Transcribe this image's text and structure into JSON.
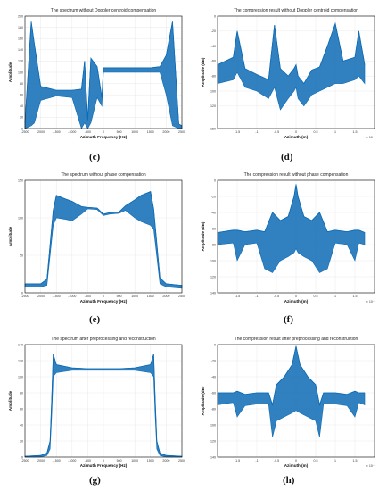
{
  "colors": {
    "series": "#0d6bb5",
    "grid": "#e3e3e3",
    "frame": "#000000"
  },
  "chart_data": [
    {
      "type": "line",
      "title": "The spectrum without Doppler centroid compensation",
      "xlabel": "Azimuth Frequency (Hz)",
      "ylabel": "Amplitude",
      "xlim": [
        -2500,
        2500
      ],
      "ylim": [
        0,
        200
      ],
      "xticks": [
        -2500,
        -2000,
        -1500,
        -1000,
        -500,
        0,
        500,
        1000,
        1500,
        2000,
        2500
      ],
      "yticks": [
        0,
        20,
        40,
        60,
        80,
        100,
        120,
        140,
        160,
        180,
        200
      ],
      "caption": "(c)",
      "series": [
        {
          "x": [
            -2500,
            -2300,
            -2200,
            -2000,
            -1500,
            -1000,
            -700,
            -600,
            -500,
            -400,
            -200,
            -50,
            0,
            50,
            200,
            500,
            1000,
            1500,
            1800,
            2000,
            2200,
            2400,
            2500
          ],
          "y": [
            10,
            190,
            150,
            75,
            68,
            68,
            70,
            120,
            15,
            125,
            110,
            55,
            108,
            108,
            108,
            108,
            108,
            108,
            110,
            130,
            190,
            8,
            5
          ],
          "env_lo": [
            0,
            5,
            10,
            50,
            58,
            55,
            0,
            10,
            0,
            10,
            55,
            40,
            100,
            100,
            100,
            100,
            100,
            100,
            100,
            60,
            5,
            0,
            0
          ]
        }
      ]
    },
    {
      "type": "line",
      "title": "The compression result without Doppler centroid compensation",
      "xlabel": "Azimuth (m)",
      "ylabel": "Amplitude (dB)",
      "xlim": [
        -2,
        2
      ],
      "ylim": [
        -150,
        0
      ],
      "xticks": [
        -1.5,
        -1,
        -0.5,
        0,
        0.5,
        1,
        1.5
      ],
      "yticks": [
        -150,
        -120,
        -100,
        -80,
        -60,
        -40,
        -20,
        0
      ],
      "exponent": "× 10⁻¹",
      "caption": "(d)",
      "series": [
        {
          "x": [
            -2,
            -1.6,
            -1.5,
            -1.3,
            -1,
            -0.7,
            -0.55,
            -0.4,
            -0.2,
            -0.05,
            0,
            0.05,
            0.2,
            0.4,
            0.6,
            0.8,
            1,
            1.2,
            1.5,
            1.6,
            1.75
          ],
          "y": [
            -65,
            -55,
            -20,
            -70,
            -78,
            -85,
            -12,
            -70,
            -80,
            -70,
            -65,
            -80,
            -90,
            -72,
            -68,
            -40,
            -10,
            -60,
            -55,
            -20,
            -65
          ],
          "env_lo": [
            -90,
            -85,
            -75,
            -95,
            -100,
            -110,
            -95,
            -125,
            -110,
            -100,
            -95,
            -110,
            -120,
            -105,
            -100,
            -95,
            -90,
            -90,
            -85,
            -80,
            -90
          ]
        }
      ]
    },
    {
      "type": "line",
      "title": "The spectrum without phase compensation",
      "xlabel": "Azimuth Frequency (Hz)",
      "ylabel": "Amplitude",
      "xlim": [
        -2500,
        2500
      ],
      "ylim": [
        0,
        150
      ],
      "xticks": [
        -2500,
        -2000,
        -1500,
        -1000,
        -500,
        0,
        500,
        1000,
        1500,
        2000,
        2500
      ],
      "yticks": [
        0,
        50,
        100,
        150
      ],
      "caption": "(e)",
      "series": [
        {
          "x": [
            -2500,
            -2000,
            -1800,
            -1600,
            -1500,
            -1200,
            -1000,
            -700,
            -500,
            -200,
            0,
            200,
            500,
            700,
            1000,
            1200,
            1500,
            1600,
            1800,
            2000,
            2500
          ],
          "y": [
            12,
            12,
            18,
            110,
            130,
            125,
            122,
            115,
            114,
            113,
            105,
            107,
            108,
            116,
            124,
            130,
            135,
            112,
            20,
            12,
            10
          ],
          "env_lo": [
            8,
            8,
            10,
            90,
            100,
            98,
            96,
            105,
            112,
            111,
            103,
            105,
            106,
            110,
            100,
            95,
            90,
            85,
            12,
            8,
            6
          ]
        }
      ]
    },
    {
      "type": "line",
      "title": "The compression result without phase compensation",
      "xlabel": "Azimuth (m)",
      "ylabel": "Amplitude (dB)",
      "xlim": [
        -2,
        2
      ],
      "ylim": [
        -140,
        0
      ],
      "xticks": [
        -1.5,
        -1,
        -0.5,
        0,
        0.5,
        1,
        1.5
      ],
      "yticks": [
        -140,
        -120,
        -100,
        -80,
        -60,
        -40,
        -20,
        0
      ],
      "exponent": "× 10⁻¹",
      "caption": "(f)",
      "series": [
        {
          "x": [
            -2,
            -1.6,
            -1.5,
            -1.3,
            -1,
            -0.8,
            -0.6,
            -0.4,
            -0.2,
            -0.05,
            0,
            0.05,
            0.2,
            0.4,
            0.6,
            0.8,
            1,
            1.3,
            1.5,
            1.6,
            1.75
          ],
          "y": [
            -65,
            -62,
            -62,
            -64,
            -62,
            -64,
            -40,
            -50,
            -45,
            -20,
            -5,
            -20,
            -45,
            -50,
            -40,
            -64,
            -62,
            -64,
            -62,
            -62,
            -65
          ],
          "env_lo": [
            -80,
            -78,
            -100,
            -80,
            -78,
            -110,
            -115,
            -100,
            -95,
            -90,
            -85,
            -90,
            -95,
            -100,
            -115,
            -110,
            -78,
            -80,
            -100,
            -78,
            -80
          ]
        }
      ]
    },
    {
      "type": "line",
      "title": "The spectrum after preprocessing and reconstruction",
      "xlabel": "Azimuth Frequency (Hz)",
      "ylabel": "Amplitude",
      "xlim": [
        -2500,
        2500
      ],
      "ylim": [
        0,
        140
      ],
      "xticks": [
        -2500,
        -2000,
        -1500,
        -1000,
        -500,
        0,
        500,
        1000,
        1500,
        2000,
        2500
      ],
      "yticks": [
        0,
        20,
        40,
        60,
        80,
        100,
        120,
        140
      ],
      "caption": "(g)",
      "series": [
        {
          "x": [
            -2500,
            -2000,
            -1800,
            -1700,
            -1650,
            -1600,
            -1500,
            -1000,
            -500,
            0,
            500,
            1000,
            1500,
            1600,
            1650,
            1700,
            1800,
            2000,
            2500
          ],
          "y": [
            1,
            2,
            5,
            20,
            70,
            128,
            115,
            111,
            110,
            110,
            110,
            111,
            115,
            128,
            70,
            20,
            5,
            2,
            1
          ],
          "env_lo": [
            0,
            0,
            2,
            10,
            50,
            100,
            105,
            108,
            108,
            108,
            108,
            108,
            105,
            100,
            50,
            10,
            2,
            0,
            0
          ]
        }
      ]
    },
    {
      "type": "line",
      "title": "The compression result after preprocessing and reconstruction",
      "xlabel": "Azimuth (m)",
      "ylabel": "Amplitude (dB)",
      "xlim": [
        -2,
        2
      ],
      "ylim": [
        -140,
        0
      ],
      "xticks": [
        -1.5,
        -1,
        -0.5,
        0,
        0.5,
        1,
        1.5
      ],
      "yticks": [
        -140,
        -120,
        -100,
        -80,
        -60,
        -40,
        -20,
        0
      ],
      "exponent": "× 10⁻¹",
      "caption": "(h)",
      "series": [
        {
          "x": [
            -2,
            -1.6,
            -1.5,
            -1.3,
            -1,
            -0.7,
            -0.6,
            -0.5,
            -0.3,
            -0.1,
            0,
            0.1,
            0.3,
            0.5,
            0.6,
            0.7,
            1,
            1.3,
            1.5,
            1.6,
            1.75
          ],
          "y": [
            -60,
            -60,
            -58,
            -62,
            -60,
            -60,
            -75,
            -50,
            -40,
            -25,
            -2,
            -25,
            -40,
            -50,
            -75,
            -60,
            -60,
            -62,
            -58,
            -60,
            -60
          ],
          "env_lo": [
            -75,
            -72,
            -90,
            -76,
            -74,
            -74,
            -115,
            -95,
            -90,
            -85,
            -82,
            -85,
            -90,
            -95,
            -115,
            -74,
            -74,
            -76,
            -90,
            -72,
            -75
          ]
        }
      ]
    }
  ]
}
